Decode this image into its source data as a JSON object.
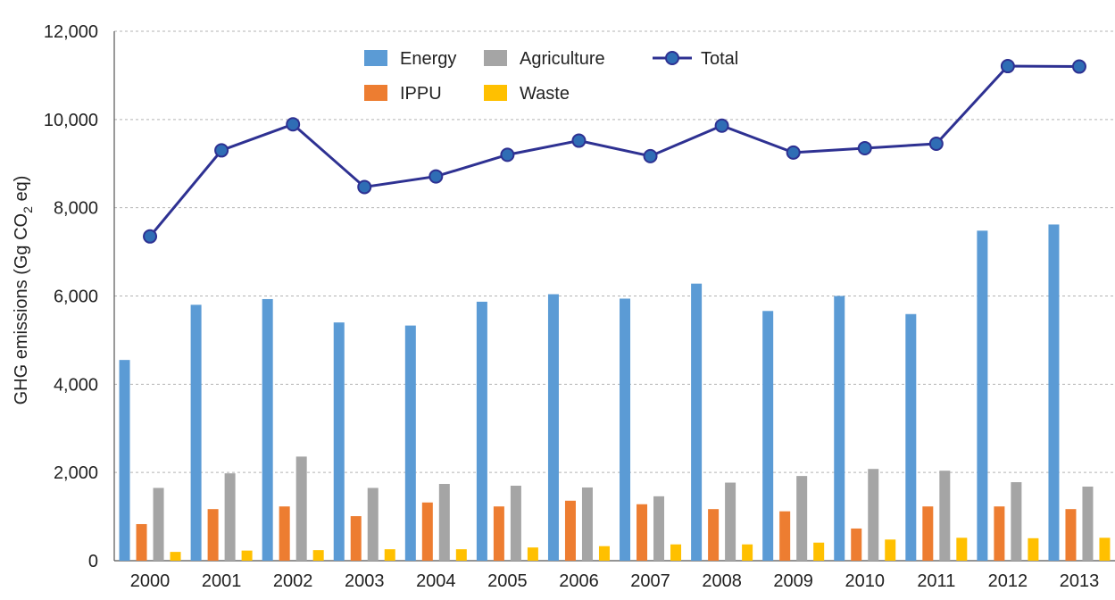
{
  "chart_data": {
    "type": "bar",
    "title": "",
    "ylabel": {
      "prefix": "GHG emissions (Gg CO",
      "subscript": "2",
      "suffix": " eq)"
    },
    "xlabel": "",
    "ylim": [
      0,
      12000
    ],
    "yticks": [
      0,
      2000,
      4000,
      6000,
      8000,
      10000,
      12000
    ],
    "ytick_labels": [
      "0",
      "2,000",
      "4,000",
      "6,000",
      "8,000",
      "10,000",
      "12,000"
    ],
    "grid": "horizontal dashed",
    "legend_position": "top",
    "categories": [
      "2000",
      "2001",
      "2002",
      "2003",
      "2004",
      "2005",
      "2006",
      "2007",
      "2008",
      "2009",
      "2010",
      "2011",
      "2012",
      "2013"
    ],
    "series": [
      {
        "name": "Energy",
        "kind": "bar",
        "color": "#5b9bd5",
        "values": [
          4550,
          5800,
          5930,
          5400,
          5330,
          5870,
          6040,
          5940,
          6280,
          5660,
          6000,
          5590,
          7480,
          7620
        ]
      },
      {
        "name": "IPPU",
        "kind": "bar",
        "color": "#ed7d31",
        "values": [
          830,
          1170,
          1230,
          1010,
          1320,
          1230,
          1360,
          1280,
          1170,
          1120,
          730,
          1230,
          1230,
          1170
        ]
      },
      {
        "name": "Agriculture",
        "kind": "bar",
        "color": "#a5a5a5",
        "values": [
          1650,
          1980,
          2360,
          1650,
          1740,
          1700,
          1660,
          1460,
          1770,
          1920,
          2080,
          2040,
          1780,
          1680
        ]
      },
      {
        "name": "Waste",
        "kind": "bar",
        "color": "#ffc000",
        "values": [
          200,
          230,
          240,
          260,
          260,
          300,
          330,
          370,
          370,
          410,
          480,
          520,
          510,
          520
        ]
      },
      {
        "name": "Total",
        "kind": "line",
        "color": "#2e3192",
        "marker_color": "#2f6db5",
        "values": [
          7350,
          9300,
          9890,
          8470,
          8710,
          9200,
          9520,
          9170,
          9860,
          9250,
          9350,
          9450,
          11210,
          11200
        ]
      }
    ],
    "legend": {
      "row1": [
        "Energy",
        "Agriculture",
        "Total"
      ],
      "row2": [
        "IPPU",
        "Waste"
      ]
    }
  }
}
